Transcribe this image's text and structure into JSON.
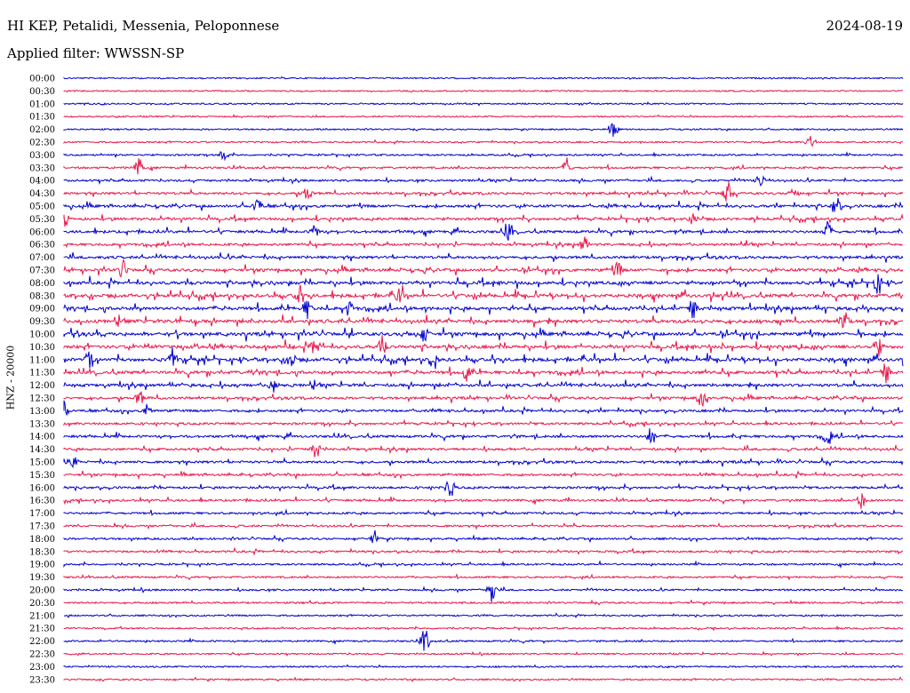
{
  "header": {
    "station": "HI KEP, Petalidi, Messenia, Peloponnese",
    "filter": "Applied filter: WWSSN-SP",
    "date": "2024-08-19"
  },
  "chart_data": {
    "type": "line",
    "title": "HI KEP, Petalidi, Messenia, Peloponnese",
    "subtitle": "Applied filter: WWSSN-SP",
    "date": "2024-08-19",
    "ylabel": "HNZ - 20000",
    "colors": [
      "#0000cc",
      "#e8174a"
    ],
    "rows": [
      "00:00",
      "00:30",
      "01:00",
      "01:30",
      "02:00",
      "02:30",
      "03:00",
      "03:30",
      "04:00",
      "04:30",
      "05:00",
      "05:30",
      "06:00",
      "06:30",
      "07:00",
      "07:30",
      "08:00",
      "08:30",
      "09:00",
      "09:30",
      "10:00",
      "10:30",
      "11:00",
      "11:30",
      "12:00",
      "12:30",
      "13:00",
      "13:30",
      "14:00",
      "14:30",
      "15:00",
      "15:30",
      "16:00",
      "16:30",
      "17:00",
      "17:30",
      "18:00",
      "18:30",
      "19:00",
      "19:30",
      "20:00",
      "20:30",
      "21:00",
      "21:30",
      "22:00",
      "22:30",
      "23:00",
      "23:30"
    ],
    "activity": [
      0.1,
      0.1,
      0.15,
      0.15,
      0.15,
      0.2,
      0.25,
      0.35,
      0.4,
      0.5,
      0.6,
      0.6,
      0.6,
      0.55,
      0.6,
      0.7,
      0.8,
      0.85,
      0.85,
      0.85,
      0.85,
      0.85,
      0.85,
      0.8,
      0.7,
      0.55,
      0.5,
      0.45,
      0.55,
      0.5,
      0.5,
      0.45,
      0.45,
      0.45,
      0.4,
      0.35,
      0.35,
      0.35,
      0.3,
      0.3,
      0.3,
      0.25,
      0.2,
      0.2,
      0.25,
      0.2,
      0.2,
      0.2
    ],
    "events": [
      {
        "row": 4,
        "pos": 0.655,
        "amp": 9
      },
      {
        "row": 5,
        "pos": 0.89,
        "amp": 10
      },
      {
        "row": 6,
        "pos": 0.19,
        "amp": 8
      },
      {
        "row": 7,
        "pos": 0.09,
        "amp": 12
      },
      {
        "row": 7,
        "pos": 0.6,
        "amp": 12
      },
      {
        "row": 8,
        "pos": 0.83,
        "amp": 8
      },
      {
        "row": 9,
        "pos": 0.29,
        "amp": 10
      },
      {
        "row": 9,
        "pos": 0.79,
        "amp": 13
      },
      {
        "row": 9,
        "pos": 0.87,
        "amp": 9
      },
      {
        "row": 10,
        "pos": 0.23,
        "amp": 12
      },
      {
        "row": 10,
        "pos": 0.92,
        "amp": 12
      },
      {
        "row": 11,
        "pos": 0.0,
        "amp": 13
      },
      {
        "row": 11,
        "pos": 0.75,
        "amp": 9
      },
      {
        "row": 12,
        "pos": 0.3,
        "amp": 9
      },
      {
        "row": 12,
        "pos": 0.53,
        "amp": 11
      },
      {
        "row": 12,
        "pos": 0.91,
        "amp": 12
      },
      {
        "row": 13,
        "pos": 0.62,
        "amp": 9
      },
      {
        "row": 15,
        "pos": 0.07,
        "amp": 10
      },
      {
        "row": 15,
        "pos": 0.66,
        "amp": 9
      },
      {
        "row": 16,
        "pos": 0.97,
        "amp": 12
      },
      {
        "row": 17,
        "pos": 0.28,
        "amp": 9
      },
      {
        "row": 17,
        "pos": 0.4,
        "amp": 9
      },
      {
        "row": 18,
        "pos": 0.29,
        "amp": 11
      },
      {
        "row": 18,
        "pos": 0.34,
        "amp": 9
      },
      {
        "row": 18,
        "pos": 0.75,
        "amp": 14
      },
      {
        "row": 19,
        "pos": 0.93,
        "amp": 14
      },
      {
        "row": 20,
        "pos": 0.43,
        "amp": 10
      },
      {
        "row": 21,
        "pos": 0.3,
        "amp": 12
      },
      {
        "row": 21,
        "pos": 0.38,
        "amp": 11
      },
      {
        "row": 21,
        "pos": 0.97,
        "amp": 12
      },
      {
        "row": 22,
        "pos": 0.03,
        "amp": 9
      },
      {
        "row": 22,
        "pos": 0.13,
        "amp": 9
      },
      {
        "row": 22,
        "pos": 0.27,
        "amp": 12
      },
      {
        "row": 22,
        "pos": 0.44,
        "amp": 10
      },
      {
        "row": 23,
        "pos": 0.48,
        "amp": 10
      },
      {
        "row": 23,
        "pos": 0.98,
        "amp": 14
      },
      {
        "row": 24,
        "pos": 0.25,
        "amp": 10
      },
      {
        "row": 25,
        "pos": 0.09,
        "amp": 9
      },
      {
        "row": 25,
        "pos": 0.76,
        "amp": 11
      },
      {
        "row": 26,
        "pos": 0.0,
        "amp": 10
      },
      {
        "row": 26,
        "pos": 0.1,
        "amp": 9
      },
      {
        "row": 28,
        "pos": 0.7,
        "amp": 11
      },
      {
        "row": 28,
        "pos": 0.91,
        "amp": 10
      },
      {
        "row": 29,
        "pos": 0.3,
        "amp": 12
      },
      {
        "row": 30,
        "pos": 0.01,
        "amp": 9
      },
      {
        "row": 32,
        "pos": 0.46,
        "amp": 14
      },
      {
        "row": 33,
        "pos": 0.95,
        "amp": 10
      },
      {
        "row": 36,
        "pos": 0.37,
        "amp": 7
      },
      {
        "row": 40,
        "pos": 0.51,
        "amp": 18
      },
      {
        "row": 44,
        "pos": 0.43,
        "amp": 16
      }
    ]
  }
}
